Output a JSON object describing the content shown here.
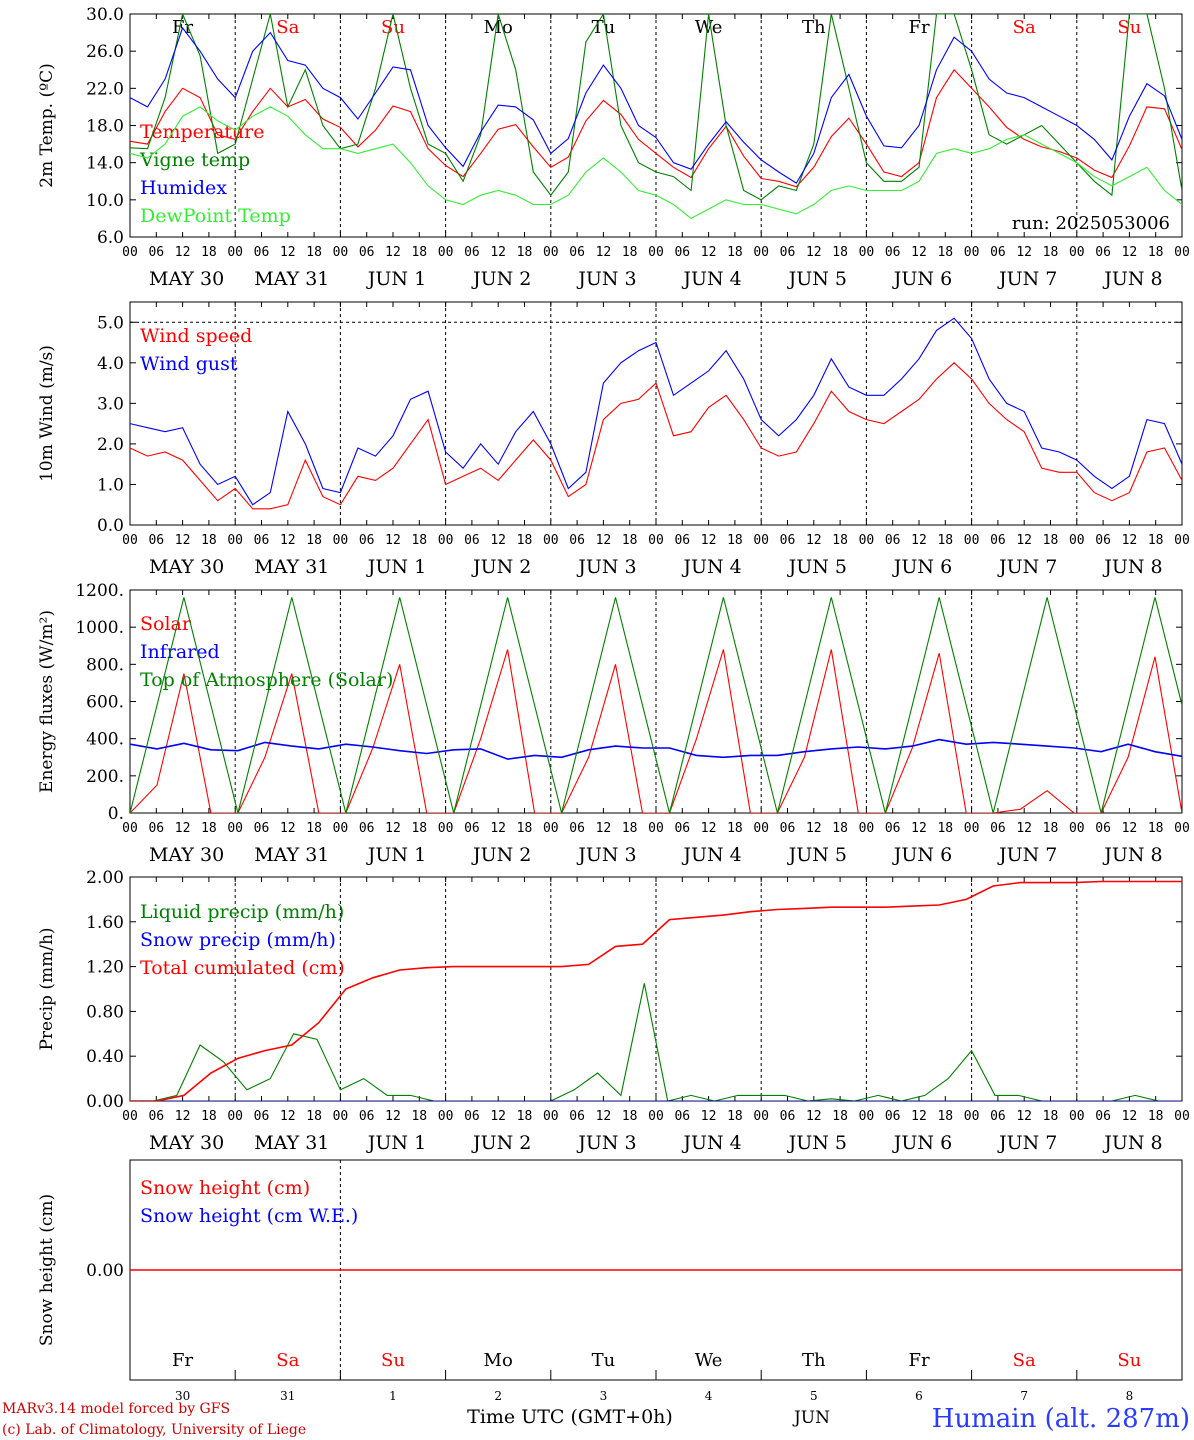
{
  "colors": {
    "red": "#ff0000",
    "green": "#008000",
    "blue": "#0000ff",
    "light_green": "#33ee33",
    "axis": "#000000",
    "grid": "#000000",
    "footer_red": "#cc0000",
    "location_blue": "#2a3cff"
  },
  "chart_data": [
    {
      "id": "temperature",
      "type": "line",
      "ylabel": "2m Temp. (ºC)",
      "ylim": [
        6.0,
        30.0
      ],
      "y_ticks": [
        "6.0",
        "10.0",
        "14.0",
        "18.0",
        "22.0",
        "26.0",
        "30.0"
      ],
      "grid": "vertical-dashed-at-day-boundaries",
      "legend_placement": "left",
      "annotation": "run: 2025053006",
      "x_step_hours": 6,
      "x_start": "2025-05-30 00 UTC",
      "day_names": [
        "Fr",
        "Sa",
        "Su",
        "Mo",
        "Tu",
        "We",
        "Th",
        "Fr",
        "Sa",
        "Su"
      ],
      "series": [
        {
          "name": "Temperature",
          "color": "red",
          "values": [
            16.3,
            16.0,
            19.5,
            22.0,
            21.0,
            17.0,
            16.5,
            19.5,
            22.0,
            20.0,
            20.8,
            18.7,
            17.8,
            15.7,
            17.5,
            20.1,
            19.5,
            15.5,
            13.7,
            12.5,
            15.0,
            17.6,
            18.1,
            15.7,
            13.5,
            14.6,
            18.5,
            20.7,
            19.2,
            16.5,
            15.0,
            13.5,
            12.4,
            15.5,
            17.9,
            14.7,
            12.3,
            12.0,
            11.4,
            13.5,
            16.8,
            18.8,
            16.0,
            13.0,
            12.5,
            14.0,
            21.0,
            24.0,
            22.0,
            20.0,
            17.8,
            16.5,
            15.7,
            15.2,
            14.5,
            13.2,
            12.4,
            15.8,
            20.0,
            19.8,
            15.4
          ]
        },
        {
          "name": "Vigne temp",
          "color": "green",
          "values": [
            15.6,
            15.5,
            21.0,
            30.0,
            25.5,
            15.0,
            16.0,
            23.0,
            30.0,
            20.0,
            24.0,
            18.0,
            15.5,
            16.0,
            22.0,
            30.0,
            22.0,
            16.0,
            15.0,
            12.0,
            17.0,
            30.0,
            24.0,
            13.0,
            10.5,
            13.0,
            27.0,
            30.0,
            18.0,
            14.0,
            13.0,
            12.5,
            11.0,
            30.0,
            18.0,
            11.0,
            10.0,
            11.5,
            11.0,
            16.0,
            30.0,
            22.0,
            14.0,
            12.0,
            12.0,
            13.5,
            30.0,
            30.0,
            24.0,
            17.0,
            16.0,
            17.0,
            18.0,
            16.0,
            14.0,
            12.0,
            10.5,
            30.0,
            30.0,
            22.0,
            11.0
          ]
        },
        {
          "name": "Humidex",
          "color": "blue",
          "values": [
            21.0,
            20.0,
            23.0,
            28.5,
            26.0,
            23.0,
            21.0,
            26.0,
            28.0,
            25.0,
            24.5,
            22.0,
            21.0,
            18.7,
            21.5,
            24.3,
            24.0,
            18.0,
            15.6,
            13.6,
            17.3,
            20.2,
            20.0,
            18.6,
            15.0,
            16.6,
            21.5,
            24.5,
            22.0,
            18.0,
            16.7,
            14.0,
            13.3,
            16.0,
            18.4,
            16.2,
            14.3,
            13.0,
            11.8,
            15.0,
            21.0,
            23.5,
            19.0,
            15.8,
            15.6,
            18.0,
            24.0,
            27.5,
            26.0,
            23.0,
            21.5,
            21.0,
            20.0,
            19.0,
            18.0,
            16.5,
            14.3,
            19.0,
            22.5,
            21.2,
            16.5
          ]
        },
        {
          "name": "DewPoint Temp",
          "color": "light_green",
          "values": [
            15.0,
            14.5,
            16.0,
            19.0,
            20.0,
            18.5,
            17.5,
            19.0,
            20.0,
            19.0,
            17.0,
            15.5,
            15.5,
            15.0,
            15.5,
            16.0,
            14.0,
            11.5,
            10.0,
            9.5,
            10.5,
            11.0,
            10.5,
            9.5,
            9.5,
            10.5,
            13.0,
            14.5,
            13.0,
            11.0,
            10.5,
            9.5,
            8.0,
            9.0,
            10.0,
            9.5,
            9.5,
            9.0,
            8.5,
            9.5,
            11.0,
            11.5,
            11.0,
            11.0,
            11.0,
            12.0,
            15.0,
            15.5,
            15.0,
            15.5,
            16.5,
            17.0,
            16.0,
            15.0,
            14.0,
            12.5,
            11.5,
            12.5,
            13.5,
            11.0,
            9.5
          ]
        }
      ]
    },
    {
      "id": "wind",
      "type": "line",
      "ylabel": "10m Wind (m/s)",
      "ylim": [
        0.0,
        5.5
      ],
      "y_ticks": [
        "0.0",
        "1.0",
        "2.0",
        "3.0",
        "4.0",
        "5.0"
      ],
      "reference_line": 5.0,
      "legend_placement": "left",
      "x_step_hours": 6,
      "series": [
        {
          "name": "Wind speed",
          "color": "red",
          "values": [
            1.9,
            1.7,
            1.8,
            1.6,
            1.1,
            0.6,
            0.9,
            0.4,
            0.4,
            0.5,
            1.6,
            0.7,
            0.5,
            1.2,
            1.1,
            1.4,
            2.0,
            2.6,
            1.0,
            1.2,
            1.4,
            1.1,
            1.6,
            2.1,
            1.6,
            0.7,
            1.0,
            2.6,
            3.0,
            3.1,
            3.5,
            2.2,
            2.3,
            2.9,
            3.2,
            2.6,
            1.9,
            1.7,
            1.8,
            2.5,
            3.3,
            2.8,
            2.6,
            2.5,
            2.8,
            3.1,
            3.6,
            4.0,
            3.6,
            3.0,
            2.6,
            2.3,
            1.4,
            1.3,
            1.3,
            0.8,
            0.6,
            0.8,
            1.8,
            1.9,
            1.1
          ]
        },
        {
          "name": "Wind gust",
          "color": "blue",
          "values": [
            2.5,
            2.4,
            2.3,
            2.4,
            1.5,
            1.0,
            1.2,
            0.5,
            0.8,
            2.8,
            2.0,
            0.9,
            0.8,
            1.9,
            1.7,
            2.2,
            3.1,
            3.3,
            1.8,
            1.4,
            2.0,
            1.5,
            2.3,
            2.8,
            2.0,
            0.9,
            1.3,
            3.5,
            4.0,
            4.3,
            4.5,
            3.2,
            3.5,
            3.8,
            4.3,
            3.6,
            2.6,
            2.2,
            2.6,
            3.2,
            4.1,
            3.4,
            3.2,
            3.2,
            3.6,
            4.1,
            4.8,
            5.1,
            4.6,
            3.6,
            3.0,
            2.8,
            1.9,
            1.8,
            1.6,
            1.2,
            0.9,
            1.2,
            2.6,
            2.5,
            1.5
          ]
        }
      ]
    },
    {
      "id": "energy",
      "type": "line",
      "ylabel": "Energy fluxes (W/m²)",
      "ylim": [
        0,
        1200
      ],
      "y_ticks": [
        "0.",
        "200.",
        "400.",
        "600.",
        "800.",
        "1000.",
        "1200."
      ],
      "legend_placement": "left",
      "x_step_hours": 6,
      "series": [
        {
          "name": "Solar",
          "color": "red",
          "values": [
            0,
            150,
            750,
            0,
            0,
            300,
            750,
            0,
            0,
            350,
            800,
            0,
            0,
            400,
            880,
            0,
            0,
            300,
            800,
            0,
            0,
            400,
            880,
            0,
            0,
            300,
            880,
            0,
            0,
            350,
            860,
            0,
            0,
            20,
            120,
            0,
            0,
            300,
            840,
            0
          ]
        },
        {
          "name": "Infrared",
          "color": "blue",
          "values": [
            370,
            345,
            375,
            340,
            335,
            380,
            360,
            345,
            370,
            355,
            335,
            320,
            340,
            345,
            290,
            310,
            300,
            340,
            360,
            350,
            350,
            310,
            300,
            310,
            310,
            330,
            345,
            355,
            345,
            360,
            395,
            370,
            380,
            370,
            360,
            350,
            330,
            370,
            330,
            305
          ]
        },
        {
          "name": "Top of Atmosphere (Solar)",
          "color": "green",
          "values": [
            0,
            580,
            1160,
            580,
            0,
            580,
            1160,
            580,
            0,
            580,
            1160,
            580,
            0,
            580,
            1160,
            580,
            0,
            580,
            1160,
            580,
            0,
            580,
            1160,
            580,
            0,
            580,
            1160,
            580,
            0,
            580,
            1160,
            580,
            0,
            580,
            1160,
            580,
            0,
            580,
            1160,
            580
          ]
        }
      ]
    },
    {
      "id": "precip",
      "type": "line",
      "ylabel": "Precip (mm/h)",
      "ylim": [
        0.0,
        2.0
      ],
      "y_ticks": [
        "0.00",
        "0.40",
        "0.80",
        "1.20",
        "1.60",
        "2.00"
      ],
      "legend_placement": "left",
      "x_step_hours": 6,
      "series": [
        {
          "name": "Liquid precip (mm/h)",
          "color": "green",
          "values": [
            0,
            0,
            0.05,
            0.5,
            0.35,
            0.1,
            0.2,
            0.6,
            0.55,
            0.1,
            0.2,
            0.05,
            0.05,
            0,
            0,
            0,
            0,
            0,
            0,
            0.1,
            0.25,
            0.05,
            1.05,
            0,
            0.05,
            0,
            0.05,
            0.05,
            0.05,
            0,
            0.02,
            0,
            0.05,
            0,
            0.05,
            0.2,
            0.45,
            0.05,
            0.05,
            0,
            0,
            0,
            0,
            0.05,
            0,
            0
          ]
        },
        {
          "name": "Snow precip (mm/h)",
          "color": "blue",
          "values": [
            0,
            0
          ]
        },
        {
          "name": "Total cumulated (cm)",
          "color": "red",
          "values": [
            0,
            0,
            0.05,
            0.25,
            0.38,
            0.45,
            0.5,
            0.7,
            1.0,
            1.1,
            1.17,
            1.19,
            1.2,
            1.2,
            1.2,
            1.2,
            1.2,
            1.22,
            1.38,
            1.4,
            1.62,
            1.64,
            1.66,
            1.69,
            1.71,
            1.72,
            1.73,
            1.73,
            1.73,
            1.74,
            1.75,
            1.8,
            1.92,
            1.95,
            1.95,
            1.95,
            1.96,
            1.96,
            1.96,
            1.96
          ]
        }
      ]
    },
    {
      "id": "snow",
      "type": "line",
      "ylabel": "Snow height (cm)",
      "y_ticks": [
        "0.00"
      ],
      "legend_placement": "left",
      "series": [
        {
          "name": "Snow height (cm)",
          "color": "red",
          "values": [
            0,
            0
          ]
        },
        {
          "name": "Snow height (cm W.E.)",
          "color": "blue",
          "values": [
            0,
            0
          ]
        }
      ]
    }
  ],
  "x_axis": {
    "hour_labels": [
      "00",
      "06",
      "12",
      "18"
    ],
    "final_label": "00",
    "date_labels": [
      "MAY 30",
      "MAY 31",
      "JUN  1",
      "JUN  2",
      "JUN  3",
      "JUN  4",
      "JUN  5",
      "JUN  6",
      "JUN  7",
      "JUN  8"
    ],
    "bottom_day_numbers": [
      "30",
      "31",
      "1",
      "2",
      "3",
      "4",
      "5",
      "6",
      "7",
      "8"
    ],
    "bottom_day_names": [
      "Fr",
      "Sa",
      "Su",
      "Mo",
      "Tu",
      "We",
      "Th",
      "Fr",
      "Sa",
      "Su"
    ],
    "weekend_indices": [
      1,
      2,
      8,
      9
    ],
    "month_label": "JUN",
    "title": "Time UTC (GMT+0h)"
  },
  "footer": {
    "line1": "MARv3.14 model forced by GFS",
    "line2": "(c) Lab. of Climatology, University of Liege",
    "location": "Humain (alt. 287m)"
  }
}
